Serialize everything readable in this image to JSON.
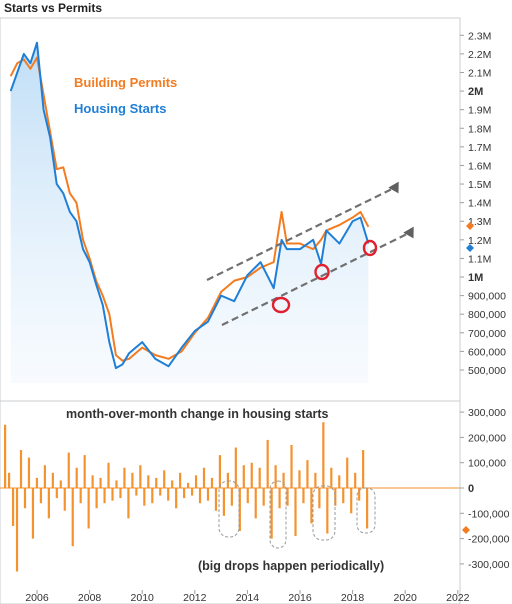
{
  "chart_data": [
    {
      "type": "area",
      "title": "Starts vs Permits",
      "ylim": [
        430000,
        2350000
      ],
      "x_ticks": [
        "2006",
        "2008",
        "2010",
        "2012",
        "2014",
        "2016",
        "2018",
        "2020",
        "2022"
      ],
      "y_ticks": [
        "2.3M",
        "2.2M",
        "2.1M",
        "2M",
        "1.9M",
        "1.8M",
        "1.7M",
        "1.6M",
        "1.5M",
        "1.4M",
        "1.3M",
        "1.2M",
        "1.1M",
        "1M",
        "900,000",
        "800,000",
        "700,000",
        "600,000",
        "500,000"
      ],
      "series": [
        {
          "name": "Building Permits",
          "color": "#f47c20",
          "x": [
            2005.0,
            2005.25,
            2005.5,
            2005.75,
            2006.0,
            2006.25,
            2006.5,
            2006.75,
            2007.0,
            2007.25,
            2007.5,
            2007.75,
            2008.0,
            2008.25,
            2008.5,
            2008.75,
            2009.0,
            2009.25,
            2009.5,
            2010.0,
            2010.5,
            2011.0,
            2011.5,
            2012.0,
            2012.5,
            2013.0,
            2013.5,
            2014.0,
            2014.5,
            2015.0,
            2015.3,
            2015.5,
            2016.0,
            2016.5,
            2016.8,
            2017.0,
            2017.5,
            2018.0,
            2018.3,
            2018.6
          ],
          "values": [
            2080000,
            2150000,
            2170000,
            2120000,
            2180000,
            1980000,
            1780000,
            1580000,
            1590000,
            1450000,
            1400000,
            1200000,
            1100000,
            980000,
            900000,
            800000,
            580000,
            550000,
            560000,
            620000,
            580000,
            560000,
            600000,
            700000,
            780000,
            920000,
            980000,
            1000000,
            1050000,
            1080000,
            1350000,
            1180000,
            1180000,
            1150000,
            1200000,
            1250000,
            1280000,
            1320000,
            1350000,
            1270000
          ]
        },
        {
          "name": "Housing Starts",
          "color": "#1f7fd6",
          "x": [
            2005.0,
            2005.25,
            2005.5,
            2005.75,
            2006.0,
            2006.25,
            2006.5,
            2006.75,
            2007.0,
            2007.25,
            2007.5,
            2007.75,
            2008.0,
            2008.25,
            2008.5,
            2008.75,
            2009.0,
            2009.25,
            2009.5,
            2010.0,
            2010.5,
            2011.0,
            2011.5,
            2012.0,
            2012.5,
            2013.0,
            2013.5,
            2014.0,
            2014.5,
            2015.0,
            2015.3,
            2015.5,
            2016.0,
            2016.5,
            2016.8,
            2017.0,
            2017.5,
            2018.0,
            2018.3,
            2018.6
          ],
          "values": [
            2000000,
            2100000,
            2200000,
            2150000,
            2260000,
            1900000,
            1750000,
            1500000,
            1450000,
            1350000,
            1300000,
            1150000,
            1080000,
            960000,
            850000,
            650000,
            510000,
            530000,
            590000,
            650000,
            560000,
            520000,
            620000,
            710000,
            760000,
            900000,
            870000,
            1010000,
            1080000,
            940000,
            1200000,
            1150000,
            1150000,
            1200000,
            1070000,
            1250000,
            1180000,
            1300000,
            1320000,
            1180000
          ]
        }
      ],
      "annotations": [
        "Building Permits",
        "Housing Starts"
      ],
      "last_values": {
        "permits": 1310000,
        "starts": 1170000
      }
    },
    {
      "type": "bar",
      "title": "month-over-month change in housing starts",
      "ylim": [
        -360000,
        320000
      ],
      "y_ticks": [
        "300,000",
        "200,000",
        "100,000",
        "0",
        "-100,000",
        "-200,000",
        "-300,000"
      ],
      "color": "#f4922e",
      "values": [
        250000,
        60000,
        -150000,
        -330000,
        150000,
        -80000,
        120000,
        -200000,
        40000,
        -60000,
        90000,
        -120000,
        60000,
        -40000,
        30000,
        -90000,
        140000,
        -230000,
        80000,
        -60000,
        130000,
        -160000,
        50000,
        -80000,
        40000,
        -60000,
        100000,
        -50000,
        30000,
        -40000,
        80000,
        -120000,
        60000,
        -30000,
        90000,
        -70000,
        50000,
        -60000,
        40000,
        -30000,
        70000,
        -50000,
        30000,
        -80000,
        60000,
        -40000,
        20000,
        -30000,
        50000,
        -60000,
        80000,
        -50000,
        40000,
        -90000,
        130000,
        -110000,
        60000,
        -70000,
        160000,
        -170000,
        90000,
        -60000,
        100000,
        -120000,
        80000,
        -70000,
        190000,
        -200000,
        90000,
        -80000,
        60000,
        -70000,
        170000,
        -190000,
        70000,
        -60000,
        110000,
        -140000,
        60000,
        -80000,
        260000,
        -180000,
        80000,
        -70000,
        50000,
        -60000,
        120000,
        -100000,
        60000,
        -50000,
        150000,
        -160000
      ],
      "annotations": [
        "(big drops happen periodically)"
      ]
    }
  ]
}
